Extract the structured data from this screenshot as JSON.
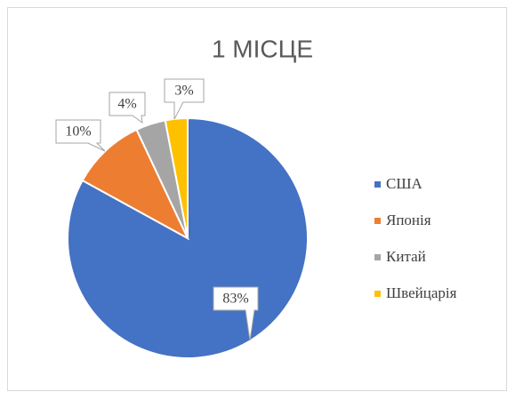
{
  "chart_data": {
    "type": "pie",
    "title": "1 МІСЦЕ",
    "categories": [
      "США",
      "Японія",
      "Китай",
      "Швейцарія"
    ],
    "values": [
      83,
      10,
      4,
      3
    ],
    "value_labels": [
      "83%",
      "10%",
      "4%",
      "3%"
    ],
    "colors": [
      "#4472c4",
      "#ed7d31",
      "#a5a5a5",
      "#ffc000"
    ],
    "legend": "right"
  }
}
